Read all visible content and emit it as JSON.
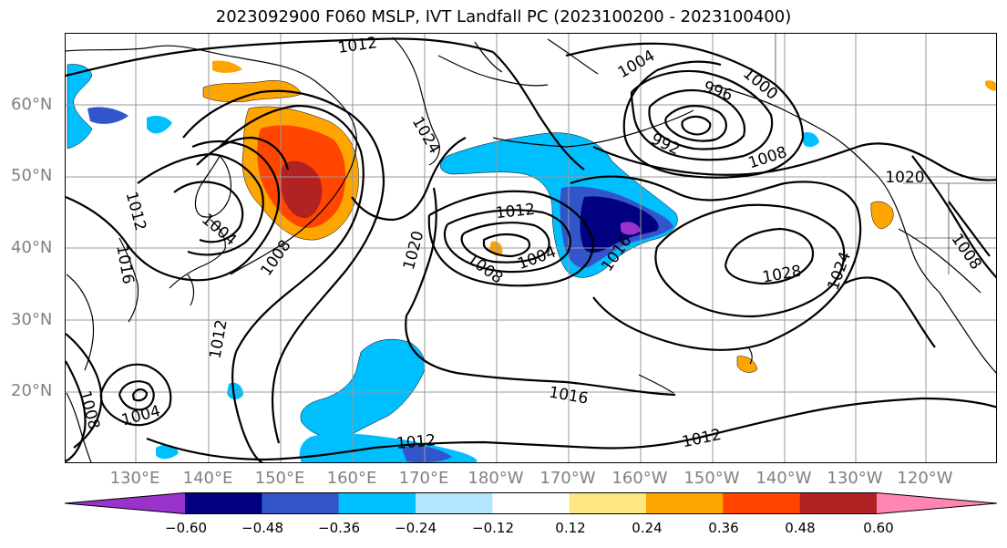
{
  "title": "2023092900 F060 MSLP, IVT Landfall PC (2023100200 - 2023100400)",
  "lat_labels": [
    "60°N",
    "50°N",
    "40°N",
    "30°N",
    "20°N"
  ],
  "lon_labels": [
    "130°E",
    "140°E",
    "150°E",
    "160°E",
    "170°E",
    "180°W",
    "170°W",
    "160°W",
    "150°W",
    "140°W",
    "130°W",
    "120°W"
  ],
  "colorbar": {
    "colors": [
      "#9933cc",
      "#000080",
      "#3355cc",
      "#00bfff",
      "#b3e6ff",
      "#ffffff",
      "#ffe680",
      "#ffa500",
      "#ff4500",
      "#b22222",
      "#ff85b3"
    ],
    "ticks": [
      "−0.60",
      "−0.48",
      "−0.36",
      "−0.24",
      "−0.12",
      "0.12",
      "0.24",
      "0.36",
      "0.48",
      "0.60"
    ]
  },
  "contour_labels": {
    "l1012_top": "1012",
    "l1004_ne": "1004",
    "l996": "996",
    "l1000": "1000",
    "l992": "992",
    "l1008_e": "1008",
    "l1020_e": "1020",
    "l1024_n": "1024",
    "l1012_w1": "1012",
    "l1004_w": "1004",
    "l1016_w": "1016",
    "l1008_w": "1008",
    "l1020_c": "1020",
    "l1012_c": "1012",
    "l1008_c": "1008",
    "l1004_c": "1004",
    "l1016_c": "1016",
    "l1028": "1028",
    "l1024_e": "1024",
    "l1008_se": "1008",
    "l1012_sw": "1012",
    "l1004_sw": "1004",
    "l1008_sw2": "1008",
    "l1016_s": "1016",
    "l1012_s1": "1012",
    "l1012_s2": "1012"
  }
}
